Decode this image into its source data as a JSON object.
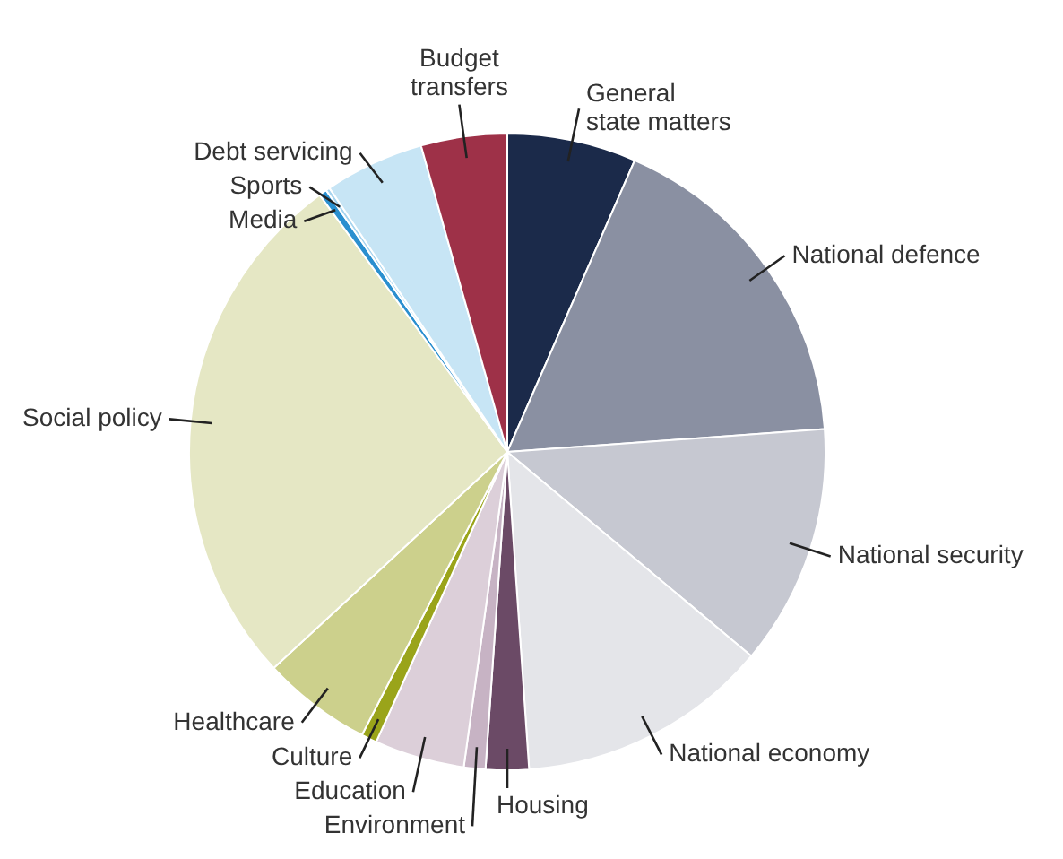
{
  "chart_data": {
    "type": "pie",
    "categories": [
      "General state matters",
      "National defence",
      "National security",
      "National economy",
      "Housing",
      "Environment",
      "Education",
      "Culture",
      "Healthcare",
      "Social policy",
      "Media",
      "Sports",
      "Debt servicing",
      "Budget transfers"
    ],
    "values": [
      6.6,
      17.4,
      12.3,
      12.9,
      2.2,
      1.1,
      4.6,
      0.8,
      5.6,
      27.0,
      0.4,
      0.2,
      5.1,
      4.4
    ],
    "colors": [
      "#1b2a4a",
      "#8a90a2",
      "#c6c8d1",
      "#e4e5e9",
      "#6b4a66",
      "#c7b3c4",
      "#dccfd9",
      "#9aa41a",
      "#ccd08c",
      "#e5e7c4",
      "#2a8fcf",
      "#a6d4ef",
      "#c7e5f5",
      "#9e3148"
    ],
    "legend": false
  }
}
